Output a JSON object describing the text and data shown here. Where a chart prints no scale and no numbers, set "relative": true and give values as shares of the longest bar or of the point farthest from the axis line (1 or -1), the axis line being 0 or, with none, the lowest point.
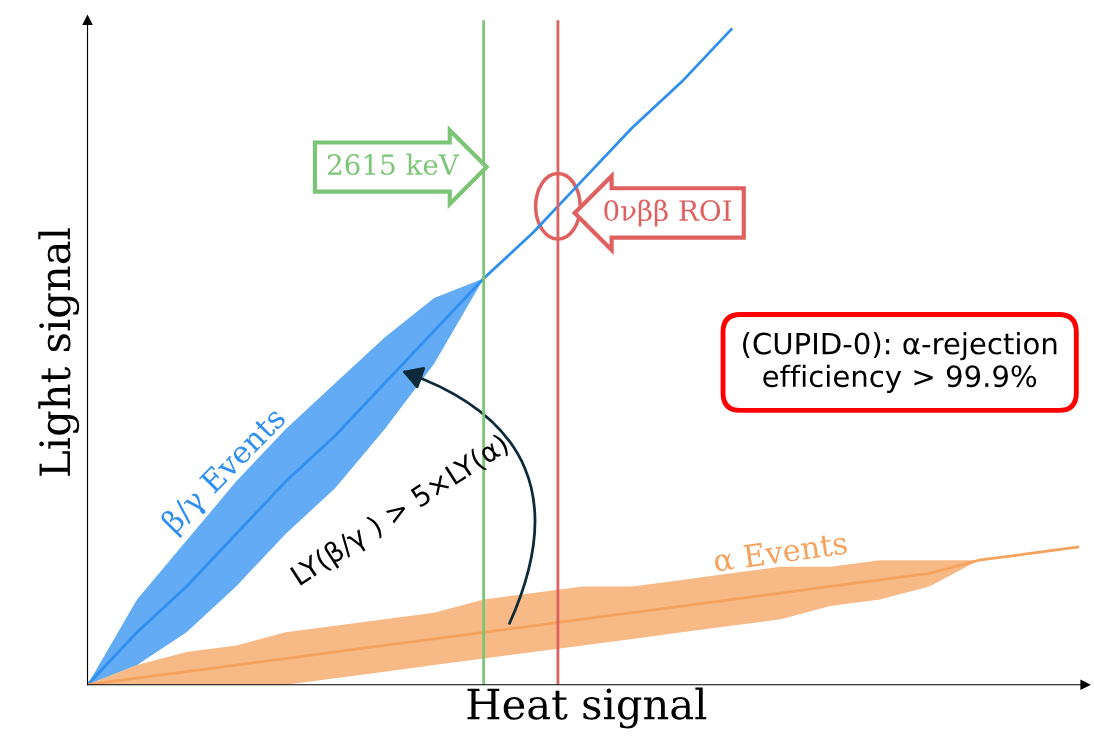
{
  "chart_data": {
    "type": "line",
    "relative": true,
    "xlabel": "Heat signal",
    "ylabel": "Light signal",
    "categories": [
      null,
      null,
      null,
      null,
      null,
      null,
      null,
      null,
      null,
      null,
      null,
      null,
      null,
      null,
      null,
      null,
      null,
      null,
      null,
      null,
      null
    ],
    "series": [
      {
        "name": "β/γ Events",
        "color": "#2f8ff0",
        "values": [
          0,
          0.08,
          0.15,
          0.23,
          0.31,
          0.38,
          0.46,
          0.54,
          0.62,
          0.69,
          0.77,
          0.85,
          0.92,
          1,
          null,
          null,
          null,
          null,
          null,
          null,
          null
        ],
        "lower": [
          0,
          0.03,
          0.08,
          0.15,
          0.23,
          0.3,
          0.39,
          0.49,
          0.62,
          null,
          null,
          null,
          null,
          null,
          null,
          null,
          null,
          null,
          null,
          null,
          null
        ],
        "upper": [
          0,
          0.13,
          0.22,
          0.31,
          0.39,
          0.46,
          0.53,
          0.59,
          0.62,
          null,
          null,
          null,
          null,
          null,
          null,
          null,
          null,
          null,
          null,
          null,
          null
        ]
      },
      {
        "name": "α Events",
        "color": "#f4a25e",
        "values": [
          0,
          0.01,
          0.02,
          0.03,
          0.04,
          0.05,
          0.06,
          0.07,
          0.08,
          0.09,
          0.1,
          0.11,
          0.12,
          0.13,
          0.14,
          0.15,
          0.16,
          0.17,
          0.19,
          0.2,
          0.21
        ],
        "lower": [
          0,
          0,
          0,
          0,
          0,
          0.01,
          0.02,
          0.03,
          0.04,
          0.05,
          0.06,
          0.07,
          0.08,
          0.09,
          0.1,
          0.12,
          0.13,
          0.15,
          0.19,
          null,
          null
        ],
        "upper": [
          0,
          0.03,
          0.05,
          0.06,
          0.08,
          0.09,
          0.1,
          0.11,
          0.13,
          0.14,
          0.15,
          0.15,
          0.16,
          0.17,
          0.18,
          0.18,
          0.19,
          0.19,
          0.19,
          null,
          null
        ]
      }
    ],
    "annotations": [
      "(CUPID-0): α-rejection efficiency > 99.9%",
      "LY(β/γ ) > 5×LY(α)",
      "2615 keV",
      "0νββ ROI"
    ],
    "legend": false,
    "marker": "none",
    "line_style": "solid"
  }
}
